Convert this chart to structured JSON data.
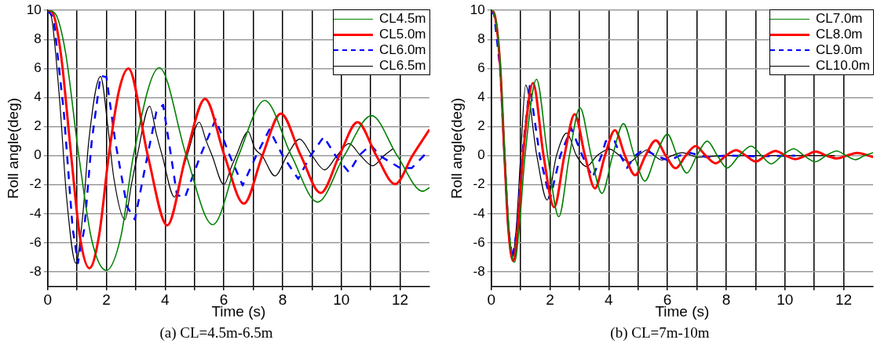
{
  "chart_data": [
    {
      "type": "line",
      "title": "(a) CL=4.5m-6.5m",
      "xlabel": "Time (s)",
      "ylabel": "Roll angle(deg)",
      "xlim": [
        0,
        13
      ],
      "ylim": [
        -9,
        10
      ],
      "xticks": [
        0,
        {
          "value": 1,
          "label": null
        },
        2,
        {
          "value": 3,
          "label": null
        },
        4,
        {
          "value": 5,
          "label": null
        },
        6,
        {
          "value": 7,
          "label": null
        },
        8,
        {
          "value": 9,
          "label": null
        },
        10,
        {
          "value": 11,
          "label": null
        },
        12
      ],
      "yticks": [
        -8,
        -6,
        -4,
        -2,
        0,
        2,
        4,
        6,
        8,
        10
      ],
      "grid": true,
      "legend": "top right",
      "marker": "none",
      "series": [
        {
          "name": "CL4.5m",
          "color": "#008000",
          "line_style": "solid",
          "x": [
            0,
            0.25,
            0.6,
            1.06,
            1.5,
            2.0,
            2.5,
            2.92,
            3.8,
            4.72,
            5.62,
            6.5,
            7.39,
            8.3,
            9.19,
            10.1,
            11.03,
            11.9,
            12.77,
            13
          ],
          "values": [
            10,
            9.8,
            7.2,
            0,
            -5.8,
            -7.9,
            -5.5,
            0,
            6.05,
            0,
            -4.75,
            0,
            3.8,
            0,
            -3.2,
            0,
            2.75,
            0,
            -2.45,
            -2.2
          ]
        },
        {
          "name": "CL5.0m",
          "color": "#ff0000",
          "line_style": "solid",
          "x": [
            0,
            0.15,
            0.45,
            0.8,
            1.1,
            1.42,
            1.75,
            2.08,
            2.42,
            2.75,
            3.41,
            4.07,
            4.71,
            5.36,
            6.02,
            6.68,
            7.31,
            7.94,
            8.62,
            9.3,
            9.93,
            10.55,
            11.19,
            11.83,
            12.42,
            13
          ],
          "values": [
            10,
            9.9,
            7,
            0,
            -5.6,
            -7.75,
            -5.5,
            0,
            4.4,
            6.0,
            0,
            -4.8,
            0,
            3.9,
            0,
            -3.3,
            0,
            2.9,
            0,
            -2.57,
            0,
            2.3,
            0,
            -1.96,
            0,
            1.8
          ]
        },
        {
          "name": "CL6.0m",
          "color": "#0000ff",
          "line_style": "dashed",
          "x": [
            0,
            0.2,
            0.55,
            0.85,
            1.03,
            1.25,
            1.5,
            1.8,
            2.0,
            2.3,
            2.7,
            2.97,
            3.3,
            3.7,
            3.93,
            4.2,
            4.4,
            4.67,
            5.2,
            5.72,
            6.2,
            6.64,
            7.1,
            7.55,
            8.0,
            8.53,
            8.95,
            9.4,
            9.8,
            10.26,
            10.6,
            11.0,
            11.3,
            12.0,
            12.4,
            13
          ],
          "values": [
            10,
            9.5,
            3,
            -5,
            -7.4,
            -5,
            1,
            5.5,
            5.4,
            1,
            -3.5,
            -4.4,
            -1,
            3,
            3.5,
            0,
            -2.7,
            -2.9,
            0,
            2.5,
            0,
            -2.05,
            0,
            1.8,
            0,
            -1.6,
            0,
            1.3,
            0,
            -1.15,
            0,
            0.75,
            0,
            -0.85,
            -0.85,
            0.4
          ]
        },
        {
          "name": "CL6.5m",
          "color": "#000000",
          "line_style": "solid",
          "x": [
            0,
            0.1,
            0.4,
            0.65,
            0.96,
            1.2,
            1.4,
            1.8,
            2.05,
            2.25,
            2.63,
            2.85,
            3.05,
            3.47,
            3.7,
            3.9,
            4.32,
            4.55,
            4.75,
            5.16,
            5.4,
            5.6,
            6.0,
            6.25,
            6.42,
            6.83,
            7.05,
            7.3,
            7.74,
            8.15,
            8.58,
            9.0,
            9.43,
            9.85,
            10.26,
            10.65,
            11.07,
            11.45,
            11.76
          ],
          "values": [
            10,
            9.8,
            4,
            -3,
            -7.4,
            -4,
            1,
            5.45,
            2,
            -1.5,
            -4.4,
            -2,
            0,
            3.4,
            1.5,
            0,
            -2.85,
            -1.3,
            0,
            2.3,
            1,
            0,
            -2.0,
            -0.8,
            0,
            1.65,
            0.5,
            0,
            -1.4,
            0,
            1.13,
            0,
            -0.98,
            0,
            0.83,
            0,
            -0.7,
            0,
            0.48
          ]
        }
      ]
    },
    {
      "type": "line",
      "title": "(b) CL=7m-10m",
      "xlabel": "Time (s)",
      "ylabel": "Roll angle(deg)",
      "xlim": [
        0,
        13
      ],
      "ylim": [
        -9,
        10
      ],
      "xticks": [
        0,
        {
          "value": 1,
          "label": null
        },
        2,
        {
          "value": 3,
          "label": null
        },
        4,
        {
          "value": 5,
          "label": null
        },
        6,
        {
          "value": 7,
          "label": null
        },
        8,
        {
          "value": 9,
          "label": null
        },
        10,
        {
          "value": 11,
          "label": null
        },
        12
      ],
      "yticks": [
        -8,
        -6,
        -4,
        -2,
        0,
        2,
        4,
        6,
        8,
        10
      ],
      "grid": true,
      "legend": "top right",
      "marker": "none",
      "series": [
        {
          "name": "CL7.0m",
          "color": "#008000",
          "line_style": "solid",
          "x": [
            0,
            0.1,
            0.3,
            0.46,
            0.6,
            0.79,
            0.95,
            1.15,
            1.54,
            1.92,
            2.3,
            2.66,
            3.02,
            3.4,
            3.77,
            4.13,
            4.5,
            4.87,
            5.23,
            5.6,
            6.0,
            6.33,
            6.66,
            7.0,
            7.35,
            7.7,
            8.03,
            8.44,
            8.85,
            9.2,
            9.53,
            9.9,
            10.3,
            10.65,
            11.03,
            11.4,
            11.76,
            12.08,
            12.4,
            12.7,
            13
          ],
          "values": [
            10,
            9.8,
            6.5,
            0,
            -5,
            -7.35,
            -5,
            0,
            5.25,
            0,
            -4.2,
            0,
            3.3,
            0,
            -2.6,
            0,
            2.2,
            0,
            -1.75,
            0,
            1.47,
            0,
            -1.2,
            0,
            1.0,
            0,
            -0.85,
            0,
            0.66,
            0,
            -0.57,
            0,
            0.47,
            0,
            -0.42,
            0,
            0.32,
            0,
            -0.28,
            0,
            0.2
          ]
        },
        {
          "name": "CL8.0m",
          "color": "#ff0000",
          "line_style": "solid",
          "x": [
            0,
            0.1,
            0.3,
            0.45,
            0.58,
            0.75,
            0.9,
            1.08,
            1.42,
            1.78,
            2.14,
            2.49,
            2.84,
            3.19,
            3.53,
            3.87,
            4.21,
            4.55,
            4.9,
            5.25,
            5.6,
            5.94,
            6.28,
            6.62,
            6.96,
            7.3,
            7.64,
            7.99,
            8.34,
            8.67,
            9.0,
            9.34,
            9.68,
            10.02,
            10.35,
            10.7,
            11.05,
            11.41,
            11.77,
            12.11,
            12.45,
            13
          ],
          "values": [
            10,
            9.8,
            6.3,
            0,
            -5,
            -7.25,
            -5,
            0,
            5.0,
            0,
            -3.55,
            0,
            2.85,
            0,
            -2.25,
            0,
            1.75,
            0,
            -1.35,
            0,
            1.05,
            0,
            -0.87,
            0,
            0.66,
            0,
            -0.53,
            0,
            0.38,
            0,
            -0.41,
            0,
            0.32,
            0,
            -0.24,
            0,
            0.28,
            0,
            -0.19,
            0,
            0.19,
            -0.1
          ]
        },
        {
          "name": "CL9.0m",
          "color": "#0000ff",
          "line_style": "dashed",
          "x": [
            0,
            0.1,
            0.3,
            0.45,
            0.58,
            0.72,
            0.88,
            1.05,
            1.31,
            1.65,
            2.0,
            2.35,
            2.72,
            3.1,
            3.45,
            3.75,
            3.9,
            4.2,
            4.4,
            4.62,
            4.9,
            5.2,
            5.6,
            6.07,
            6.4,
            6.75,
            7.33,
            8.0,
            9.0,
            10.35
          ],
          "values": [
            10,
            9.7,
            6,
            0,
            -5,
            -7.1,
            -5,
            0,
            4.8,
            0,
            -3.0,
            0,
            1.9,
            0,
            -1.5,
            0,
            1.0,
            1.0,
            0,
            -0.85,
            0,
            0.45,
            0,
            -0.36,
            0,
            0.2,
            -0.1,
            0,
            -0.05,
            0
          ]
        },
        {
          "name": "CL10.0m",
          "color": "#000000",
          "line_style": "solid",
          "x": [
            0,
            0.1,
            0.3,
            0.44,
            0.57,
            0.7,
            0.85,
            1.0,
            1.17,
            1.55,
            1.9,
            2.22,
            2.57,
            2.9,
            3.24,
            3.6,
            4.03,
            4.37,
            4.7,
            5.0,
            5.32,
            5.55,
            5.8,
            6.15,
            6.5,
            7.03,
            8,
            11.7
          ],
          "values": [
            10,
            9.7,
            6,
            0,
            -5,
            -7.1,
            -5,
            0,
            4.85,
            0,
            -3.05,
            0,
            1.55,
            0,
            -0.75,
            0,
            0.45,
            0,
            -0.45,
            0,
            0.4,
            0,
            -0.3,
            0,
            0.2,
            -0.1,
            0,
            0
          ]
        }
      ]
    }
  ]
}
